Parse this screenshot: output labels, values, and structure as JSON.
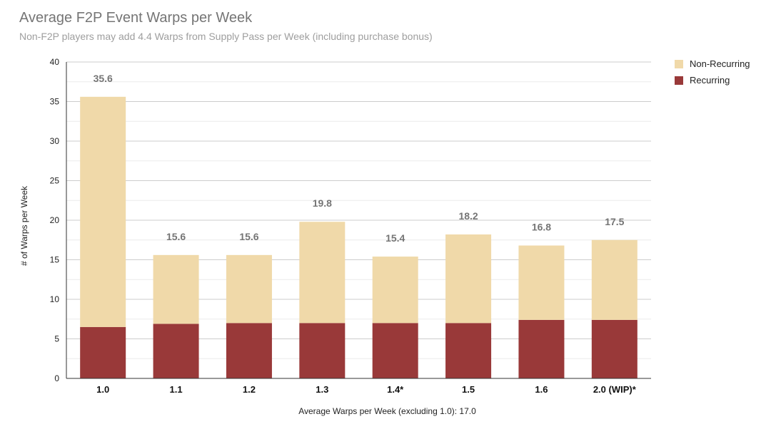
{
  "chart_data": {
    "type": "bar",
    "stacked": true,
    "title": "Average F2P Event Warps per Week",
    "subtitle": "Non-F2P players may add 4.4 Warps from Supply Pass per Week (including purchase bonus)",
    "xlabel": "Average Warps per Week (excluding 1.0): 17.0",
    "ylabel": "# of Warps per Week",
    "ylim": [
      0,
      40
    ],
    "yticks": [
      0,
      5,
      10,
      15,
      20,
      25,
      30,
      35,
      40
    ],
    "grid": true,
    "legend_position": "right",
    "categories": [
      "1.0",
      "1.1",
      "1.2",
      "1.3",
      "1.4*",
      "1.5",
      "1.6",
      "2.0 (WIP)*"
    ],
    "series": [
      {
        "name": "Recurring",
        "color": "#993939",
        "values": [
          6.5,
          6.9,
          7.0,
          7.0,
          7.0,
          7.0,
          7.4,
          7.4
        ]
      },
      {
        "name": "Non-Recurring",
        "color": "#f0d9a9",
        "values": [
          29.1,
          8.7,
          8.6,
          12.8,
          8.4,
          11.2,
          9.4,
          10.1
        ]
      }
    ],
    "totals": [
      "35.6",
      "15.6",
      "15.6",
      "19.8",
      "15.4",
      "18.2",
      "16.8",
      "17.5"
    ]
  }
}
